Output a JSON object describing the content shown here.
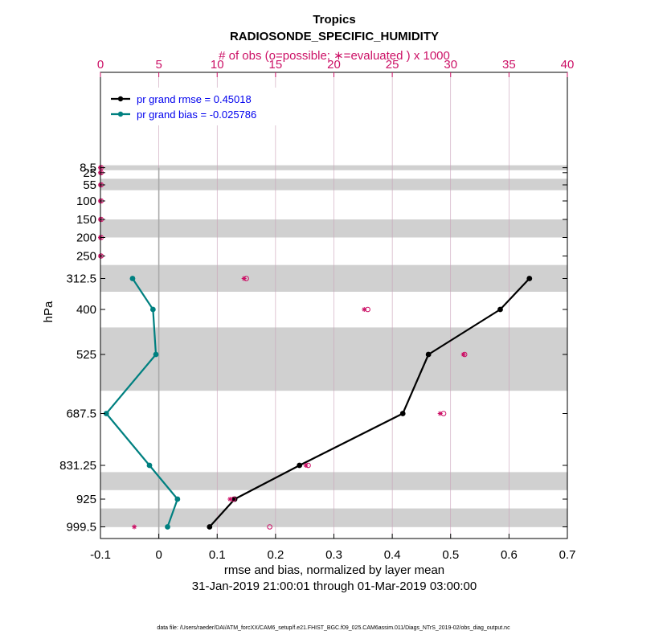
{
  "chart_data": {
    "type": "line",
    "title": "Tropics",
    "subtitle": "RADIOSONDE_SPECIFIC_HUMIDITY",
    "top_axis_label": "# of obs (o=possible; ∗=evaluated ) x 1000",
    "xlabel": "rmse and bias, normalized by layer mean",
    "xlabel2": "31-Jan-2019 21:00:01 through 01-Mar-2019 03:00:00",
    "ylabel": "hPa",
    "xlim": [
      -0.1,
      0.7
    ],
    "x_ticks": [
      -0.1,
      0,
      0.1,
      0.2,
      0.3,
      0.4,
      0.5,
      0.6,
      0.7
    ],
    "x_tick_labels": [
      "-0.1",
      "0",
      "0.1",
      "0.2",
      "0.3",
      "0.4",
      "0.5",
      "0.6",
      "0.7"
    ],
    "top_xlim": [
      0,
      40
    ],
    "top_ticks": [
      0,
      5,
      10,
      15,
      20,
      25,
      30,
      35,
      40
    ],
    "top_tick_labels": [
      "0",
      "5",
      "10",
      "15",
      "20",
      "25",
      "30",
      "35",
      "40"
    ],
    "levels": [
      8.5,
      25,
      55,
      100,
      150,
      200,
      250,
      312.5,
      400,
      525,
      687.5,
      831.25,
      925,
      999.5
    ],
    "level_labels": [
      "8.5",
      "25",
      "55",
      "100",
      "150",
      "200",
      "250",
      "312.5",
      "400",
      "525",
      "687.5",
      "831.25",
      "925",
      "999.5"
    ],
    "layer_bands": [
      [
        0,
        17
      ],
      [
        40,
        70
      ],
      [
        150,
        200
      ],
      [
        275,
        350
      ],
      [
        450,
        625
      ],
      [
        850,
        900
      ],
      [
        950,
        1000
      ]
    ],
    "series": [
      {
        "name": "pr grand rmse = 0.45018",
        "color": "#000000",
        "points": [
          [
            312.5,
            0.635
          ],
          [
            400,
            0.585
          ],
          [
            525,
            0.462
          ],
          [
            687.5,
            0.418
          ],
          [
            831.25,
            0.241
          ],
          [
            925,
            0.13
          ],
          [
            999.5,
            0.087
          ]
        ]
      },
      {
        "name": "pr grand bias = -0.025786",
        "color": "#008080",
        "points": [
          [
            312.5,
            -0.045
          ],
          [
            400,
            -0.01
          ],
          [
            525,
            -0.005
          ],
          [
            687.5,
            -0.09
          ],
          [
            831.25,
            -0.016
          ],
          [
            925,
            0.032
          ],
          [
            999.5,
            0.015
          ]
        ]
      }
    ],
    "obs_possible": [
      [
        8.5,
        0.05
      ],
      [
        25,
        0.05
      ],
      [
        55,
        0.05
      ],
      [
        100,
        0.05
      ],
      [
        150,
        0.05
      ],
      [
        200,
        0.05
      ],
      [
        250,
        0.05
      ],
      [
        312.5,
        12.5
      ],
      [
        400,
        22.9
      ],
      [
        525,
        31.2
      ],
      [
        687.5,
        29.4
      ],
      [
        831.25,
        17.8
      ],
      [
        925,
        11.4
      ],
      [
        999.5,
        14.5
      ]
    ],
    "obs_evaluated": [
      [
        8.5,
        0.0
      ],
      [
        25,
        0.0
      ],
      [
        55,
        0.0
      ],
      [
        100,
        0.0
      ],
      [
        150,
        0.0
      ],
      [
        200,
        0.0
      ],
      [
        250,
        0.0
      ],
      [
        312.5,
        12.3
      ],
      [
        400,
        22.6
      ],
      [
        525,
        31.1
      ],
      [
        687.5,
        29.1
      ],
      [
        831.25,
        17.6
      ],
      [
        925,
        11.1
      ],
      [
        999.5,
        2.9
      ]
    ],
    "obs_color": "#cc1166",
    "rmse_color": "#000000",
    "bias_color": "#008080",
    "band_color": "#d0d0d0",
    "grid_color": "#c8a0b8",
    "zero_line_color": "#aaaaaa",
    "legend_text_color": "#0000ee",
    "legend": "top-left"
  },
  "footer": "data file: /Users/raeder/DAI/ATM_forcXX/CAM6_setup/f.e21.FHIST_BGC.f09_025.CAM6assim.011/Diags_NTrS_2019-02/obs_diag_output.nc"
}
